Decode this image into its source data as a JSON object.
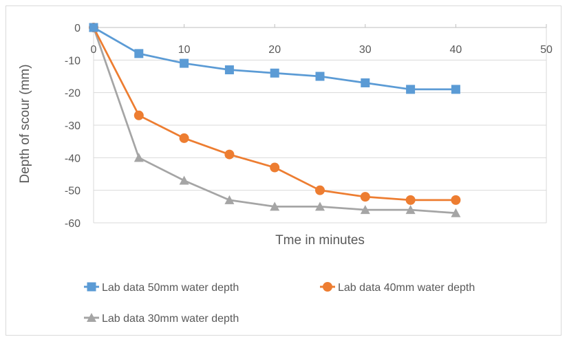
{
  "chart_data": {
    "type": "scatter",
    "title": "",
    "xlabel": "Tme in minutes",
    "ylabel": "Depth of scour (mm)",
    "xlim": [
      0,
      50
    ],
    "ylim": [
      -60,
      0
    ],
    "x_ticks": [
      "0",
      "10",
      "20",
      "30",
      "40",
      "50"
    ],
    "y_ticks": [
      "0",
      "-10",
      "-20",
      "-30",
      "-40",
      "-50",
      "-60"
    ],
    "grid": "horizontal",
    "legend_position": "bottom",
    "series": [
      {
        "name": "Lab data 50mm water depth",
        "marker": "square",
        "color": "#5B9BD5",
        "x": [
          0,
          5,
          10,
          15,
          20,
          25,
          30,
          35,
          40
        ],
        "y": [
          0,
          -8,
          -11,
          -13,
          -14,
          -15,
          -17,
          -19,
          -19
        ]
      },
      {
        "name": "Lab data 40mm water depth",
        "marker": "circle",
        "color": "#ED7D31",
        "x": [
          0,
          5,
          10,
          15,
          20,
          25,
          30,
          35,
          40
        ],
        "y": [
          0,
          -27,
          -34,
          -39,
          -43,
          -50,
          -52,
          -53,
          -53
        ]
      },
      {
        "name": "Lab data 30mm water depth",
        "marker": "triangle",
        "color": "#A5A5A5",
        "x": [
          0,
          5,
          10,
          15,
          20,
          25,
          30,
          35,
          40
        ],
        "y": [
          0,
          -40,
          -47,
          -53,
          -55,
          -55,
          -56,
          -56,
          -57
        ]
      }
    ]
  }
}
